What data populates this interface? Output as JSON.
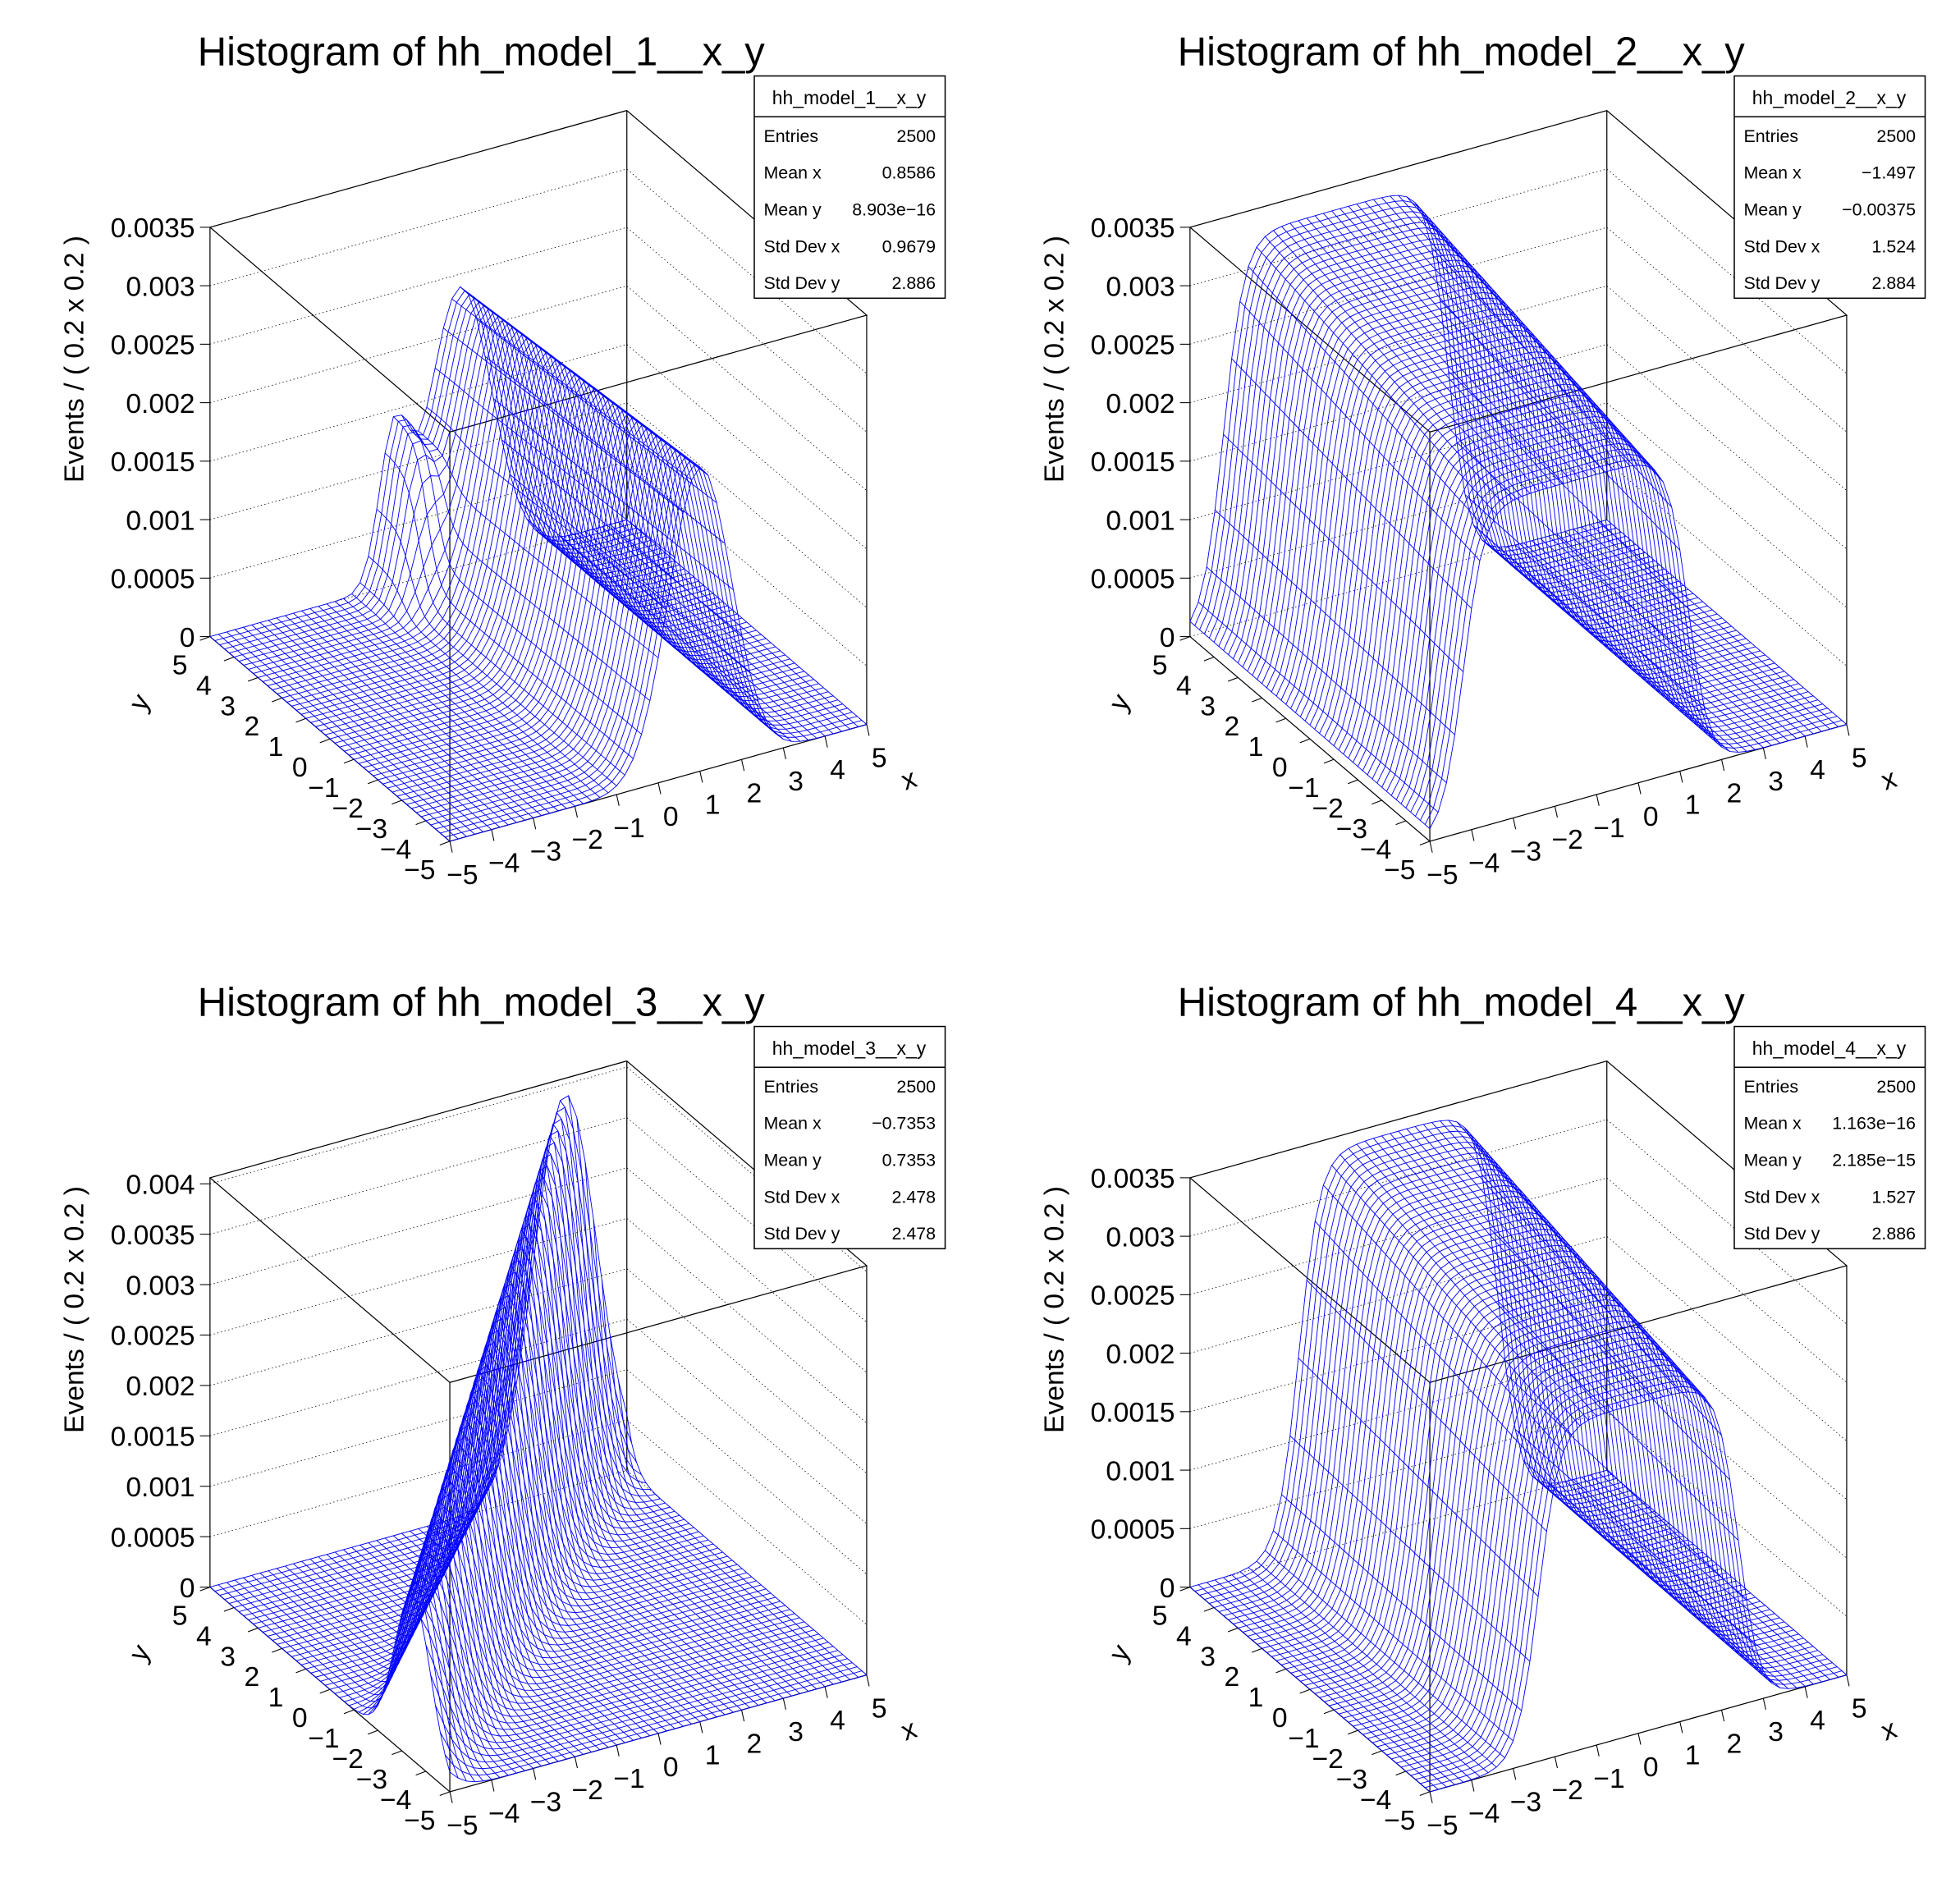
{
  "chart_data": [
    {
      "type": "surface",
      "title": "Histogram of hh_model_1__x_y",
      "zlabel": "Events / ( 0.2 x 0.2 )",
      "xlabel": "x",
      "ylabel": "y",
      "xlim": [
        -5,
        5
      ],
      "ylim": [
        -5,
        5
      ],
      "zlim": [
        0,
        0.0035
      ],
      "z_ticks": [
        "0",
        "0.0005",
        "0.001",
        "0.0015",
        "0.002",
        "0.0025",
        "0.003",
        "0.0035"
      ],
      "x_ticks": [
        "−5",
        "−4",
        "−3",
        "−2",
        "−1",
        "0",
        "1",
        "2",
        "3",
        "4",
        "5"
      ],
      "y_ticks": [
        "−5",
        "−4",
        "−3",
        "−2",
        "−1",
        "0",
        "1",
        "2",
        "3",
        "4",
        "5"
      ],
      "bins": {
        "x": 50,
        "y": 50
      },
      "line_color": "#0000ff",
      "stats": {
        "name": "hh_model_1__x_y",
        "rows": [
          [
            "Entries",
            "2500"
          ],
          [
            "Mean x",
            "0.8586"
          ],
          [
            "Mean y",
            "8.903e−16"
          ],
          [
            "Std Dev x",
            "0.9679"
          ],
          [
            "Std Dev y",
            "2.886"
          ]
        ]
      }
    },
    {
      "type": "surface",
      "title": "Histogram of hh_model_2__x_y",
      "zlabel": "Events / ( 0.2 x 0.2 )",
      "xlabel": "x",
      "ylabel": "y",
      "xlim": [
        -5,
        5
      ],
      "ylim": [
        -5,
        5
      ],
      "zlim": [
        0,
        0.0035
      ],
      "z_ticks": [
        "0",
        "0.0005",
        "0.001",
        "0.0015",
        "0.002",
        "0.0025",
        "0.003",
        "0.0035"
      ],
      "x_ticks": [
        "−5",
        "−4",
        "−3",
        "−2",
        "−1",
        "0",
        "1",
        "2",
        "3",
        "4",
        "5"
      ],
      "y_ticks": [
        "−5",
        "−4",
        "−3",
        "−2",
        "−1",
        "0",
        "1",
        "2",
        "3",
        "4",
        "5"
      ],
      "bins": {
        "x": 50,
        "y": 50
      },
      "line_color": "#0000ff",
      "stats": {
        "name": "hh_model_2__x_y",
        "rows": [
          [
            "Entries",
            "2500"
          ],
          [
            "Mean x",
            "−1.497"
          ],
          [
            "Mean y",
            "−0.00375"
          ],
          [
            "Std Dev x",
            "1.524"
          ],
          [
            "Std Dev y",
            "2.884"
          ]
        ]
      }
    },
    {
      "type": "surface",
      "title": "Histogram of hh_model_3__x_y",
      "zlabel": "Events / ( 0.2 x 0.2 )",
      "xlabel": "x",
      "ylabel": "y",
      "xlim": [
        -5,
        5
      ],
      "ylim": [
        -5,
        5
      ],
      "zlim": [
        0,
        0.00406
      ],
      "z_ticks": [
        "0",
        "0.0005",
        "0.001",
        "0.0015",
        "0.002",
        "0.0025",
        "0.003",
        "0.0035",
        "0.004"
      ],
      "x_ticks": [
        "−5",
        "−4",
        "−3",
        "−2",
        "−1",
        "0",
        "1",
        "2",
        "3",
        "4",
        "5"
      ],
      "y_ticks": [
        "−5",
        "−4",
        "−3",
        "−2",
        "−1",
        "0",
        "1",
        "2",
        "3",
        "4",
        "5"
      ],
      "bins": {
        "x": 50,
        "y": 50
      },
      "line_color": "#0000ff",
      "stats": {
        "name": "hh_model_3__x_y",
        "rows": [
          [
            "Entries",
            "2500"
          ],
          [
            "Mean x",
            "−0.7353"
          ],
          [
            "Mean y",
            "0.7353"
          ],
          [
            "Std Dev x",
            "2.478"
          ],
          [
            "Std Dev y",
            "2.478"
          ]
        ]
      }
    },
    {
      "type": "surface",
      "title": "Histogram of hh_model_4__x_y",
      "zlabel": "Events / ( 0.2 x 0.2 )",
      "xlabel": "x",
      "ylabel": "y",
      "xlim": [
        -5,
        5
      ],
      "ylim": [
        -5,
        5
      ],
      "zlim": [
        0,
        0.0035
      ],
      "z_ticks": [
        "0",
        "0.0005",
        "0.001",
        "0.0015",
        "0.002",
        "0.0025",
        "0.003",
        "0.0035"
      ],
      "x_ticks": [
        "−5",
        "−4",
        "−3",
        "−2",
        "−1",
        "0",
        "1",
        "2",
        "3",
        "4",
        "5"
      ],
      "y_ticks": [
        "−5",
        "−4",
        "−3",
        "−2",
        "−1",
        "0",
        "1",
        "2",
        "3",
        "4",
        "5"
      ],
      "bins": {
        "x": 50,
        "y": 50
      },
      "line_color": "#0000ff",
      "stats": {
        "name": "hh_model_4__x_y",
        "rows": [
          [
            "Entries",
            "2500"
          ],
          [
            "Mean x",
            "1.163e−16"
          ],
          [
            "Mean y",
            "2.185e−15"
          ],
          [
            "Std Dev x",
            "1.527"
          ],
          [
            "Std Dev y",
            "2.886"
          ]
        ]
      }
    }
  ]
}
